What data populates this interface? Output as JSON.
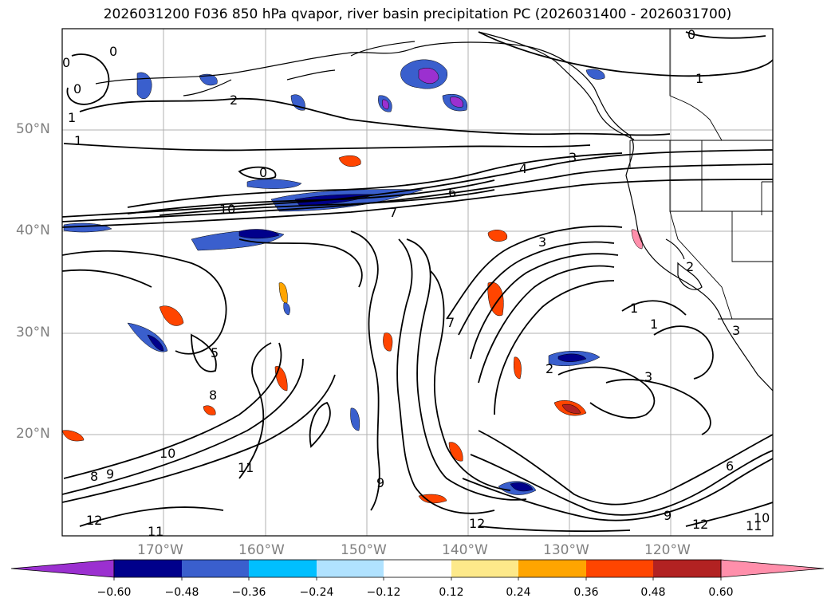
{
  "title": "2026031200 F036 850 hPa qvapor, river basin precipitation PC (2026031400 - 2026031700)",
  "map": {
    "lat_labels": [
      "50°N",
      "40°N",
      "30°N",
      "20°N"
    ],
    "lon_labels": [
      "170°W",
      "160°W",
      "150°W",
      "140°W",
      "130°W",
      "120°W"
    ],
    "contour_labels": [
      "0",
      "0",
      "0",
      "1",
      "1",
      "2",
      "1",
      "0",
      "0",
      "4",
      "3",
      "6",
      "7",
      "10",
      "2",
      "3",
      "1",
      "1",
      "3",
      "2",
      "3",
      "5",
      "8",
      "9",
      "10",
      "8",
      "9",
      "11",
      "12",
      "11",
      "12",
      "12",
      "6",
      "9",
      "11",
      "10",
      "7"
    ]
  },
  "colorbar": {
    "ticks": [
      "−0.60",
      "−0.48",
      "−0.36",
      "−0.24",
      "−0.12",
      "0.12",
      "0.24",
      "0.36",
      "0.48",
      "0.60"
    ],
    "colors": [
      "#9b30d0",
      "#00008b",
      "#3a5fcd",
      "#00bfff",
      "#b0e2ff",
      "#ffffff",
      "#fde98a",
      "#ffa500",
      "#ff4500",
      "#b22222",
      "#ff8fab",
      "#ff8fab"
    ]
  }
}
